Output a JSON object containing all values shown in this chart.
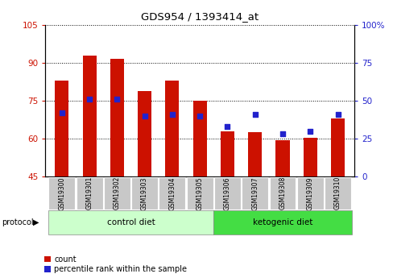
{
  "title": "GDS954 / 1393414_at",
  "categories": [
    "GSM19300",
    "GSM19301",
    "GSM19302",
    "GSM19303",
    "GSM19304",
    "GSM19305",
    "GSM19306",
    "GSM19307",
    "GSM19308",
    "GSM19309",
    "GSM19310"
  ],
  "bar_values": [
    83,
    93,
    91.5,
    79,
    83,
    75,
    63,
    62.5,
    59.5,
    60.5,
    68
  ],
  "dot_values_right": [
    42,
    51,
    51,
    40,
    41,
    40,
    33,
    41,
    28,
    30,
    41
  ],
  "ylim_left": [
    45,
    105
  ],
  "ylim_right": [
    0,
    100
  ],
  "yticks_left": [
    45,
    60,
    75,
    90,
    105
  ],
  "yticks_right": [
    0,
    25,
    50,
    75,
    100
  ],
  "ytick_labels_left": [
    "45",
    "60",
    "75",
    "90",
    "105"
  ],
  "ytick_labels_right": [
    "0",
    "25",
    "50",
    "75",
    "100%"
  ],
  "bar_color": "#cc1100",
  "dot_color": "#2222cc",
  "control_diet_bg": "#ccffcc",
  "ketogenic_diet_bg": "#44dd44",
  "control_label": "control diet",
  "ketogenic_label": "ketogenic diet",
  "protocol_label": "protocol",
  "legend_count": "count",
  "legend_percentile": "percentile rank within the sample",
  "n_control": 6,
  "n_ketogenic": 5,
  "bar_width": 0.5,
  "figsize": [
    4.89,
    3.45
  ],
  "dpi": 100
}
